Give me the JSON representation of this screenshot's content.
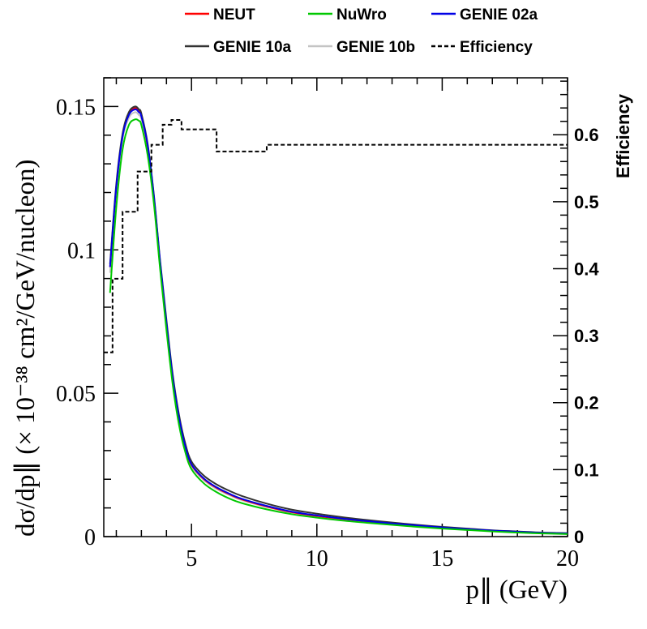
{
  "chart_data": {
    "type": "line",
    "xlabel": "p∥ (GeV)",
    "ylabel": "dσ/dp∥ (× 10⁻³⁸ cm²/GeV/nucleon)",
    "y2label": "Efficiency",
    "xlim": [
      1.5,
      20
    ],
    "ylim": [
      0,
      0.16
    ],
    "y2lim": [
      0,
      0.685
    ],
    "x_ticks": [
      5,
      10,
      15,
      20
    ],
    "x_tick_labels": [
      "5",
      "10",
      "15",
      "20"
    ],
    "y_ticks": [
      0,
      0.05,
      0.1,
      0.15
    ],
    "y_tick_labels": [
      "0",
      "0.05",
      "0.1",
      "0.15"
    ],
    "y2_ticks": [
      0,
      0.1,
      0.2,
      0.3,
      0.4,
      0.5,
      0.6
    ],
    "y2_tick_labels": [
      "0",
      "0.1",
      "0.2",
      "0.3",
      "0.4",
      "0.5",
      "0.6"
    ],
    "legend_position": "top",
    "legend": [
      {
        "name": "NEUT",
        "color": "#ff0000",
        "style": "solid"
      },
      {
        "name": "NuWro",
        "color": "#00c800",
        "style": "solid"
      },
      {
        "name": "GENIE 02a",
        "color": "#0000e6",
        "style": "solid"
      },
      {
        "name": "GENIE 10a",
        "color": "#333333",
        "style": "solid"
      },
      {
        "name": "GENIE 10b",
        "color": "#c4c4c4",
        "style": "solid"
      },
      {
        "name": "Efficiency",
        "color": "#000000",
        "style": "dashed"
      }
    ],
    "series": [
      {
        "name": "NEUT",
        "color": "#ff0000",
        "x": [
          1.75,
          2.0,
          2.25,
          2.5,
          2.75,
          2.9,
          3.0,
          3.25,
          3.5,
          3.75,
          4.0,
          4.25,
          4.5,
          4.75,
          5.0,
          5.5,
          6.0,
          6.5,
          7.0,
          8.0,
          9.0,
          10.0,
          11.0,
          12.0,
          13.0,
          14.0,
          15.0,
          16.0,
          17.0,
          18.0,
          19.0,
          20.0
        ],
        "y": [
          0.094,
          0.122,
          0.14,
          0.1475,
          0.1495,
          0.1485,
          0.147,
          0.136,
          0.118,
          0.095,
          0.074,
          0.055,
          0.041,
          0.031,
          0.025,
          0.02,
          0.017,
          0.0148,
          0.013,
          0.0105,
          0.0085,
          0.0072,
          0.0062,
          0.0053,
          0.0045,
          0.0038,
          0.0031,
          0.0026,
          0.002,
          0.0016,
          0.0013,
          0.0011
        ]
      },
      {
        "name": "NuWro",
        "color": "#00c800",
        "x": [
          1.75,
          2.0,
          2.25,
          2.5,
          2.75,
          2.9,
          3.0,
          3.25,
          3.5,
          3.75,
          4.0,
          4.25,
          4.5,
          4.75,
          5.0,
          5.5,
          6.0,
          6.5,
          7.0,
          8.0,
          9.0,
          10.0,
          11.0,
          12.0,
          13.0,
          14.0,
          15.0,
          16.0,
          17.0,
          18.0,
          19.0,
          20.0
        ],
        "y": [
          0.085,
          0.115,
          0.135,
          0.1435,
          0.1455,
          0.145,
          0.1435,
          0.133,
          0.116,
          0.093,
          0.072,
          0.053,
          0.039,
          0.0295,
          0.0235,
          0.0185,
          0.0155,
          0.0133,
          0.0117,
          0.0095,
          0.0078,
          0.0066,
          0.0056,
          0.0048,
          0.0041,
          0.0034,
          0.0028,
          0.0023,
          0.0018,
          0.0014,
          0.0011,
          0.0009
        ]
      },
      {
        "name": "GENIE 02a",
        "color": "#0000e6",
        "x": [
          1.75,
          2.0,
          2.25,
          2.5,
          2.75,
          2.9,
          3.0,
          3.25,
          3.5,
          3.75,
          4.0,
          4.25,
          4.5,
          4.75,
          5.0,
          5.5,
          6.0,
          6.5,
          7.0,
          8.0,
          9.0,
          10.0,
          11.0,
          12.0,
          13.0,
          14.0,
          15.0,
          16.0,
          17.0,
          18.0,
          19.0,
          20.0
        ],
        "y": [
          0.094,
          0.122,
          0.1395,
          0.147,
          0.149,
          0.148,
          0.1465,
          0.1365,
          0.1185,
          0.0955,
          0.0745,
          0.0555,
          0.0415,
          0.0315,
          0.0252,
          0.0202,
          0.0172,
          0.015,
          0.0132,
          0.0107,
          0.0087,
          0.0074,
          0.0063,
          0.0054,
          0.0046,
          0.0039,
          0.0032,
          0.0026,
          0.0021,
          0.0017,
          0.0013,
          0.0011
        ]
      },
      {
        "name": "GENIE 10a",
        "color": "#333333",
        "x": [
          1.75,
          2.0,
          2.25,
          2.5,
          2.75,
          2.9,
          3.0,
          3.25,
          3.5,
          3.75,
          4.0,
          4.25,
          4.5,
          4.75,
          5.0,
          5.5,
          6.0,
          6.5,
          7.0,
          8.0,
          9.0,
          10.0,
          11.0,
          12.0,
          13.0,
          14.0,
          15.0,
          16.0,
          17.0,
          18.0,
          19.0,
          20.0
        ],
        "y": [
          0.095,
          0.123,
          0.1405,
          0.148,
          0.15,
          0.149,
          0.1475,
          0.137,
          0.119,
          0.096,
          0.0755,
          0.0565,
          0.0425,
          0.0325,
          0.0262,
          0.0212,
          0.0182,
          0.016,
          0.0142,
          0.0115,
          0.0094,
          0.008,
          0.0068,
          0.0058,
          0.0049,
          0.0041,
          0.0034,
          0.0028,
          0.0022,
          0.0018,
          0.0014,
          0.0012
        ]
      },
      {
        "name": "GENIE 10b",
        "color": "#c4c4c4",
        "x": [
          1.75,
          2.0,
          2.25,
          2.5,
          2.75,
          2.9,
          3.0,
          3.25,
          3.5,
          3.75,
          4.0,
          4.25,
          4.5,
          4.75,
          5.0,
          5.5,
          6.0,
          6.5,
          7.0,
          8.0,
          9.0,
          10.0,
          11.0,
          12.0,
          13.0,
          14.0,
          15.0,
          16.0,
          17.0,
          18.0,
          19.0,
          20.0
        ],
        "y": [
          0.092,
          0.12,
          0.1385,
          0.146,
          0.148,
          0.147,
          0.1455,
          0.1355,
          0.1175,
          0.0945,
          0.0735,
          0.0545,
          0.0405,
          0.0305,
          0.0245,
          0.0196,
          0.0166,
          0.0145,
          0.0127,
          0.0103,
          0.0084,
          0.0071,
          0.0061,
          0.0052,
          0.0044,
          0.0037,
          0.003,
          0.0025,
          0.002,
          0.0016,
          0.0012,
          0.001
        ]
      }
    ],
    "efficiency": {
      "name": "Efficiency",
      "style": "dashed-step",
      "axis": "right",
      "edges": [
        1.5,
        1.85,
        2.25,
        2.85,
        3.4,
        3.85,
        4.2,
        4.6,
        6.0,
        8.0,
        20.0
      ],
      "values": [
        0.275,
        0.385,
        0.485,
        0.545,
        0.585,
        0.615,
        0.622,
        0.608,
        0.575,
        0.585
      ]
    }
  }
}
